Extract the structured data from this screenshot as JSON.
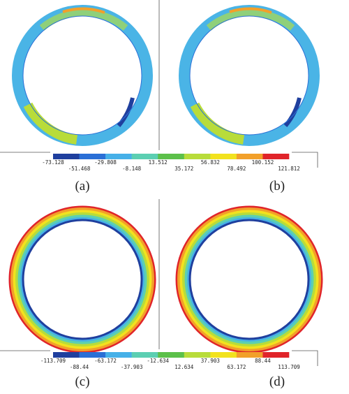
{
  "panels": [
    {
      "label": "(a)"
    },
    {
      "label": "(b)"
    },
    {
      "label": "(c)"
    },
    {
      "label": "(d)"
    }
  ],
  "legends": [
    {
      "colors": [
        "#1f3f9e",
        "#2a6fd6",
        "#46b0e8",
        "#5ccfb2",
        "#5cc04a",
        "#b8dc3a",
        "#f2e21e",
        "#f2a02a",
        "#e0242a"
      ],
      "ticks": [
        "-73.128",
        "-51.468",
        "-29.808",
        "-8.148",
        "13.512",
        "35.172",
        "56.832",
        "78.492",
        "100.152",
        "121.812"
      ]
    },
    {
      "colors": [
        "#1f3f9e",
        "#2a6fd6",
        "#46b0e8",
        "#5ccfb2",
        "#5cc04a",
        "#b8dc3a",
        "#f2e21e",
        "#f2a02a",
        "#e0242a"
      ],
      "ticks": [
        "-113.709",
        "-88.44",
        "-63.172",
        "-37.903",
        "-12.634",
        "12.634",
        "37.903",
        "63.172",
        "88.44",
        "113.709"
      ]
    }
  ]
}
